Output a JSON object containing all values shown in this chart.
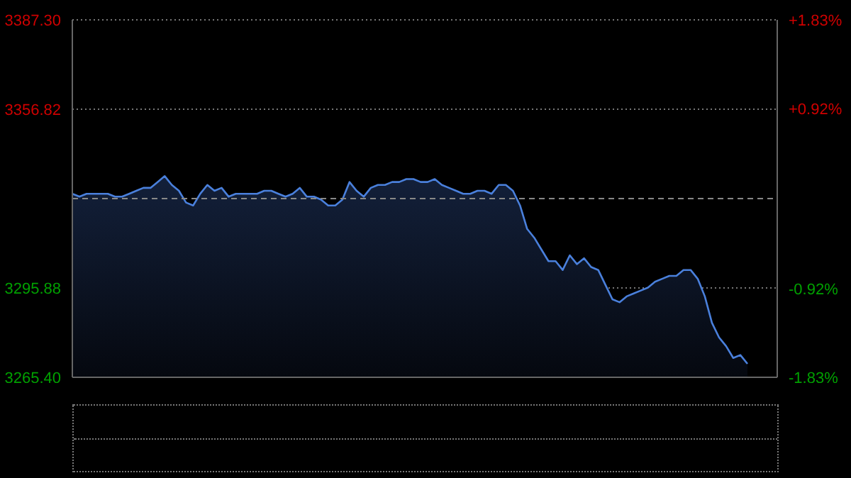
{
  "chart_data": {
    "type": "area",
    "categories": [
      null,
      null,
      null,
      null,
      null,
      null,
      null,
      null,
      null,
      null,
      null,
      null,
      null,
      null,
      null,
      null,
      null,
      null,
      null,
      null,
      null,
      null,
      null,
      null,
      null,
      null,
      null,
      null,
      null,
      null,
      null,
      null,
      null,
      null,
      null,
      null,
      null,
      null,
      null,
      null,
      null,
      null,
      null,
      null,
      null,
      null,
      null,
      null,
      null,
      null,
      null,
      null,
      null,
      null,
      null,
      null,
      null,
      null,
      null,
      null,
      null,
      null,
      null,
      null,
      null,
      null,
      null,
      null,
      null,
      null,
      null,
      null,
      null,
      null,
      null,
      null,
      null,
      null,
      null,
      null,
      null,
      null,
      null,
      null,
      null,
      null,
      null,
      null,
      null,
      null,
      null,
      null,
      null,
      null,
      null,
      null
    ],
    "series": [
      {
        "color": "#4a80dc",
        "values": [
          3328,
          3327,
          3328,
          3328,
          3328,
          3328,
          3327,
          3327,
          3328,
          3329,
          3330,
          3330,
          3332,
          3334,
          3331,
          3329,
          3325,
          3324,
          3328,
          3331,
          3329,
          3330,
          3327,
          3328,
          3328,
          3328,
          3328,
          3329,
          3329,
          3328,
          3327,
          3328,
          3330,
          3327,
          3327,
          3326,
          3324,
          3324,
          3326,
          3332,
          3329,
          3327,
          3330,
          3331,
          3331,
          3332,
          3332,
          3333,
          3333,
          3332,
          3332,
          3333,
          3331,
          3330,
          3329,
          3328,
          3328,
          3329,
          3329,
          3328,
          3331,
          3331,
          3329,
          3324,
          3316,
          3313,
          3309,
          3305,
          3305,
          3302,
          3307,
          3304,
          3306,
          3303,
          3302,
          3297,
          3292,
          3291,
          3293,
          3294,
          3295,
          3296,
          3298,
          3299,
          3300,
          3300,
          3302,
          3302,
          3299,
          3293,
          3284,
          3279,
          3276,
          3272,
          3273,
          3270
        ]
      }
    ],
    "ylim": [
      3265.4,
      3387.3
    ],
    "yticks": [
      {
        "value": 3265.4,
        "label": "3265.40"
      },
      {
        "value": 3295.88,
        "label": "3295.88"
      },
      {
        "value": 3356.82,
        "label": "3356.82"
      },
      {
        "value": 3387.3,
        "label": "3387.30"
      }
    ],
    "y2lim": [
      -1.83,
      1.83
    ],
    "y2ticks": [
      {
        "value": -1.83,
        "label": "-1.83%"
      },
      {
        "value": -0.92,
        "label": "-0.92%"
      },
      {
        "value": 0.92,
        "label": "+0.92%"
      },
      {
        "value": 1.83,
        "label": "+1.83%"
      }
    ],
    "ref_lines": [
      {
        "axis": "y",
        "value": 3326.35,
        "color": "#888888",
        "line_style": "dashed"
      }
    ],
    "grid": "y",
    "tick_labels": "y"
  }
}
